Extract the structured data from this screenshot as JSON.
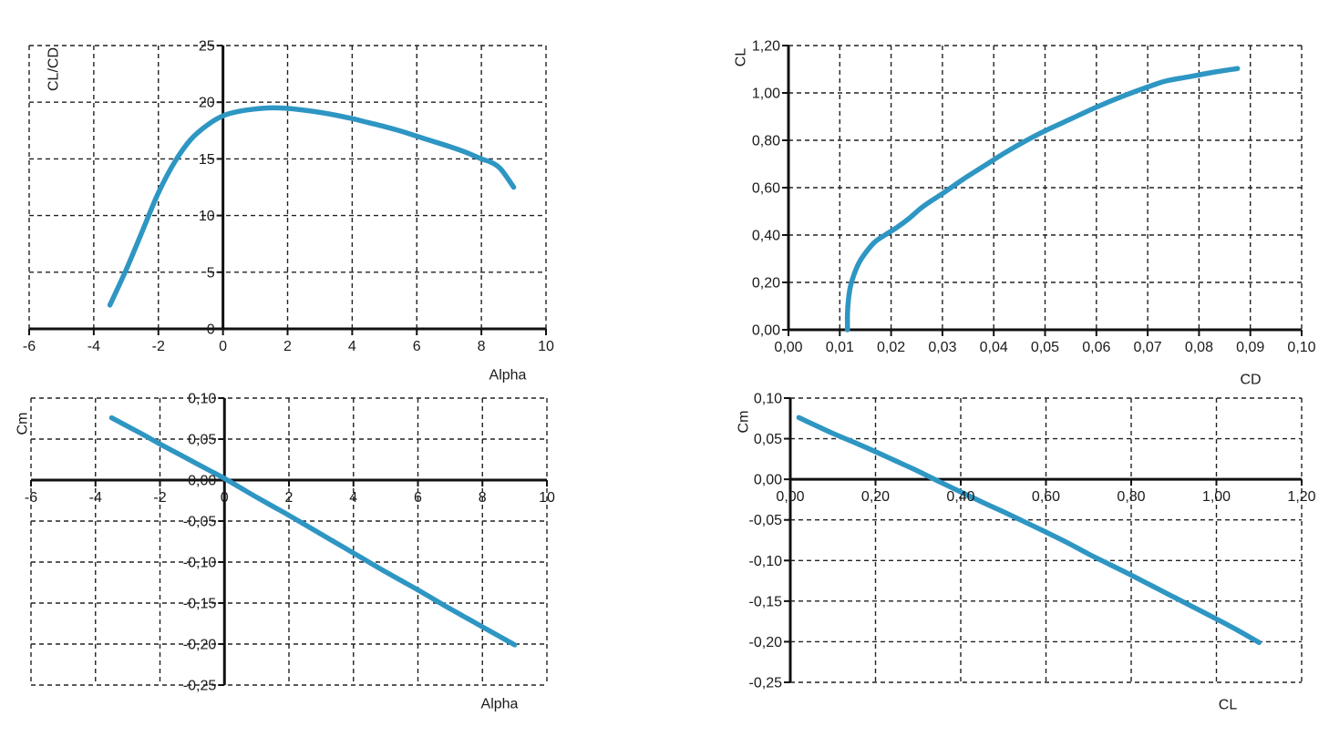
{
  "page": {
    "background": "#ffffff",
    "text_color": "#1a1a1a",
    "grid_color": "#222222",
    "axis_color": "#111111",
    "curve_color": "#2E96C3"
  },
  "chart_data": [
    {
      "id": "clcd_vs_alpha",
      "type": "line",
      "title": "",
      "xlabel": "Alpha",
      "ylabel": "CL/CD",
      "x_range": [
        -6,
        10
      ],
      "y_range": [
        0,
        25
      ],
      "x_ticks": [
        -6,
        -4,
        -2,
        0,
        2,
        4,
        6,
        8,
        10
      ],
      "x_tick_labels": [
        "-6",
        "-4",
        "-2",
        "0",
        "2",
        "4",
        "6",
        "8",
        "10"
      ],
      "y_ticks": [
        0,
        5,
        10,
        15,
        20,
        25
      ],
      "y_tick_labels": [
        "0",
        "5",
        "10",
        "15",
        "20",
        "25"
      ],
      "x_axis_at_y": 0,
      "y_axis_at_x": 0,
      "dashed_borders": [
        "left",
        "top",
        "right"
      ],
      "grid": true,
      "legend": "none",
      "points": [
        [
          -3.5,
          2.1
        ],
        [
          -3,
          5.2
        ],
        [
          -2.5,
          8.6
        ],
        [
          -2,
          12.0
        ],
        [
          -1.5,
          14.7
        ],
        [
          -1,
          16.7
        ],
        [
          -0.5,
          17.95
        ],
        [
          0,
          18.8
        ],
        [
          0.5,
          19.2
        ],
        [
          1,
          19.4
        ],
        [
          1.5,
          19.5
        ],
        [
          2,
          19.45
        ],
        [
          2.5,
          19.3
        ],
        [
          3,
          19.1
        ],
        [
          3.5,
          18.85
        ],
        [
          4,
          18.55
        ],
        [
          4.5,
          18.2
        ],
        [
          5,
          17.85
        ],
        [
          5.5,
          17.45
        ],
        [
          6,
          17.0
        ],
        [
          6.5,
          16.55
        ],
        [
          7,
          16.1
        ],
        [
          7.5,
          15.6
        ],
        [
          8,
          15.0
        ],
        [
          8.3,
          14.7
        ],
        [
          8.6,
          14.1
        ],
        [
          9,
          12.5
        ]
      ]
    },
    {
      "id": "cl_vs_cd",
      "type": "line",
      "title": "",
      "xlabel": "CD",
      "ylabel": "CL",
      "x_range": [
        0,
        0.1
      ],
      "y_range": [
        0,
        1.2
      ],
      "x_ticks": [
        0,
        0.01,
        0.02,
        0.03,
        0.04,
        0.05,
        0.06,
        0.07,
        0.08,
        0.09,
        0.1
      ],
      "x_tick_labels": [
        "0,00",
        "0,01",
        "0,02",
        "0,03",
        "0,04",
        "0,05",
        "0,06",
        "0,07",
        "0,08",
        "0,09",
        "0,10"
      ],
      "y_ticks": [
        0,
        0.2,
        0.4,
        0.6,
        0.8,
        1.0,
        1.2
      ],
      "y_tick_labels": [
        "0,00",
        "0,20",
        "0,40",
        "0,60",
        "0,80",
        "1,00",
        "1,20"
      ],
      "x_axis_at_y": 0,
      "y_axis_at_x": 0,
      "dashed_borders": [
        "top",
        "right"
      ],
      "grid": true,
      "legend": "none",
      "points": [
        [
          0.0115,
          0.0
        ],
        [
          0.0115,
          0.07
        ],
        [
          0.0117,
          0.13
        ],
        [
          0.0121,
          0.185
        ],
        [
          0.0128,
          0.235
        ],
        [
          0.0138,
          0.285
        ],
        [
          0.0152,
          0.33
        ],
        [
          0.0168,
          0.37
        ],
        [
          0.0188,
          0.4
        ],
        [
          0.021,
          0.43
        ],
        [
          0.0235,
          0.47
        ],
        [
          0.0262,
          0.52
        ],
        [
          0.03,
          0.575
        ],
        [
          0.034,
          0.635
        ],
        [
          0.038,
          0.69
        ],
        [
          0.042,
          0.745
        ],
        [
          0.046,
          0.795
        ],
        [
          0.05,
          0.84
        ],
        [
          0.055,
          0.89
        ],
        [
          0.06,
          0.94
        ],
        [
          0.065,
          0.985
        ],
        [
          0.07,
          1.025
        ],
        [
          0.0735,
          1.05
        ],
        [
          0.078,
          1.068
        ],
        [
          0.083,
          1.088
        ],
        [
          0.0875,
          1.103
        ]
      ]
    },
    {
      "id": "cm_vs_alpha",
      "type": "line",
      "title": "",
      "xlabel": "Alpha",
      "ylabel": "Cm",
      "x_range": [
        -6,
        10
      ],
      "y_range": [
        -0.25,
        0.1
      ],
      "x_ticks": [
        -6,
        -4,
        -2,
        0,
        2,
        4,
        6,
        8,
        10
      ],
      "x_tick_labels": [
        "-6",
        "-4",
        "-2",
        "0",
        "2",
        "4",
        "6",
        "8",
        "10"
      ],
      "y_ticks": [
        -0.25,
        -0.2,
        -0.15,
        -0.1,
        -0.05,
        0,
        0.05,
        0.1
      ],
      "y_tick_labels": [
        "-0,25",
        "-0,20",
        "-0,15",
        "-0,10",
        "-0,05",
        "0,00",
        "0,05",
        "0,10"
      ],
      "x_axis_at_y": 0,
      "y_axis_at_x": 0,
      "dashed_borders": [
        "left",
        "top",
        "right",
        "bottom"
      ],
      "grid": true,
      "legend": "none",
      "points": [
        [
          -3.5,
          0.076
        ],
        [
          -3,
          0.0655
        ],
        [
          -2.5,
          0.055
        ],
        [
          -2,
          0.044
        ],
        [
          -1.5,
          0.0335
        ],
        [
          -1,
          0.023
        ],
        [
          -0.5,
          0.0125
        ],
        [
          0,
          0.002
        ],
        [
          0.5,
          -0.0095
        ],
        [
          1,
          -0.021
        ],
        [
          1.5,
          -0.032
        ],
        [
          2,
          -0.043
        ],
        [
          2.5,
          -0.0545
        ],
        [
          3,
          -0.066
        ],
        [
          3.5,
          -0.0775
        ],
        [
          4,
          -0.089
        ],
        [
          4.5,
          -0.1005
        ],
        [
          5,
          -0.112
        ],
        [
          5.5,
          -0.123
        ],
        [
          6,
          -0.134
        ],
        [
          6.5,
          -0.1455
        ],
        [
          7,
          -0.157
        ],
        [
          7.5,
          -0.168
        ],
        [
          8,
          -0.179
        ],
        [
          8.5,
          -0.19
        ],
        [
          9,
          -0.201
        ]
      ]
    },
    {
      "id": "cm_vs_cl",
      "type": "line",
      "title": "",
      "xlabel": "CL",
      "ylabel": "Cm",
      "x_range": [
        0,
        1.2
      ],
      "y_range": [
        -0.25,
        0.1
      ],
      "x_ticks": [
        0,
        0.2,
        0.4,
        0.6,
        0.8,
        1.0,
        1.2
      ],
      "x_tick_labels": [
        "0,00",
        "0,20",
        "0,40",
        "0,60",
        "0,80",
        "1,00",
        "1,20"
      ],
      "y_ticks": [
        -0.25,
        -0.2,
        -0.15,
        -0.1,
        -0.05,
        0,
        0.05,
        0.1
      ],
      "y_tick_labels": [
        "-0,25",
        "-0,20",
        "-0,15",
        "-0,10",
        "-0,05",
        "0,00",
        "0,05",
        "0,10"
      ],
      "x_axis_at_y": 0,
      "y_axis_at_x": 0,
      "dashed_borders": [
        "top",
        "right",
        "bottom"
      ],
      "grid": true,
      "legend": "none",
      "points": [
        [
          0.02,
          0.076
        ],
        [
          0.1,
          0.0565
        ],
        [
          0.15,
          0.0455
        ],
        [
          0.2,
          0.034
        ],
        [
          0.25,
          0.022
        ],
        [
          0.3,
          0.01
        ],
        [
          0.35,
          -0.003
        ],
        [
          0.4,
          -0.0155
        ],
        [
          0.45,
          -0.028
        ],
        [
          0.5,
          -0.04
        ],
        [
          0.55,
          -0.0525
        ],
        [
          0.6,
          -0.065
        ],
        [
          0.65,
          -0.078
        ],
        [
          0.7,
          -0.092
        ],
        [
          0.75,
          -0.105
        ],
        [
          0.8,
          -0.118
        ],
        [
          0.85,
          -0.1315
        ],
        [
          0.9,
          -0.145
        ],
        [
          0.95,
          -0.1585
        ],
        [
          1.0,
          -0.172
        ],
        [
          1.05,
          -0.186
        ],
        [
          1.1,
          -0.201
        ]
      ]
    }
  ]
}
